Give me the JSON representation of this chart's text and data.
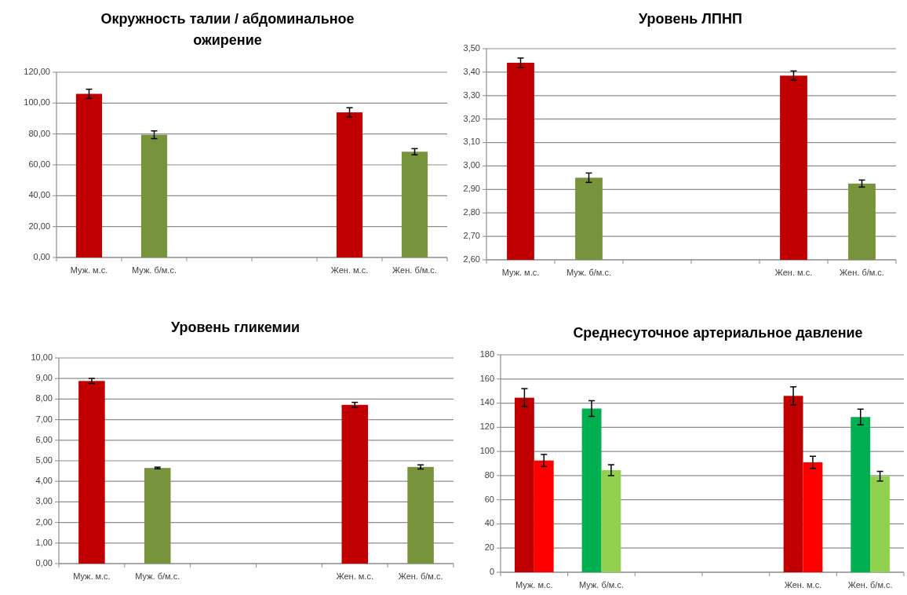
{
  "chart_data": [
    {
      "type": "bar",
      "title": "Окружность  талии / абдоминальное ожирение",
      "categories": [
        "Муж. м.с.",
        "Муж. б/м.с.",
        null,
        null,
        "Жен. м.с.",
        "Жен. б/м.с."
      ],
      "series": [
        {
          "values": [
            106,
            79.5,
            null,
            null,
            94,
            68.5
          ],
          "colors": [
            "#c00000",
            "#77933c",
            null,
            null,
            "#c00000",
            "#77933c"
          ],
          "errors": [
            3,
            2.5,
            null,
            null,
            3,
            2
          ]
        }
      ],
      "ylim": [
        0,
        120
      ],
      "yticks": [
        {
          "value": 0,
          "label": "0,00"
        },
        {
          "value": 20,
          "label": "20,00"
        },
        {
          "value": 40,
          "label": "40,00"
        },
        {
          "value": 60,
          "label": "60,00"
        },
        {
          "value": 80,
          "label": "80,00"
        },
        {
          "value": 100,
          "label": "100,00"
        },
        {
          "value": 120,
          "label": "120,00"
        }
      ],
      "grid": "y"
    },
    {
      "type": "bar",
      "title": "Уровень ЛПНП",
      "categories": [
        "Муж. м.с.",
        "Муж. б/м.с.",
        null,
        null,
        "Жен. м.с.",
        "Жен. б/м.с."
      ],
      "series": [
        {
          "values": [
            3.44,
            2.95,
            null,
            null,
            3.385,
            2.925
          ],
          "colors": [
            "#c00000",
            "#77933c",
            null,
            null,
            "#c00000",
            "#77933c"
          ],
          "errors": [
            0.02,
            0.02,
            null,
            null,
            0.02,
            0.015
          ]
        }
      ],
      "ylim": [
        2.6,
        3.5
      ],
      "yticks": [
        {
          "value": 2.6,
          "label": "2,60"
        },
        {
          "value": 2.7,
          "label": "2,70"
        },
        {
          "value": 2.8,
          "label": "2,80"
        },
        {
          "value": 2.9,
          "label": "2,90"
        },
        {
          "value": 3.0,
          "label": "3,00"
        },
        {
          "value": 3.1,
          "label": "3,10"
        },
        {
          "value": 3.2,
          "label": "3,20"
        },
        {
          "value": 3.3,
          "label": "3,30"
        },
        {
          "value": 3.4,
          "label": "3,40"
        },
        {
          "value": 3.5,
          "label": "3,50"
        }
      ],
      "grid": "y"
    },
    {
      "type": "bar",
      "title": "Уровень гликемии",
      "categories": [
        "Муж. м.с.",
        "Муж. б/м.с.",
        null,
        null,
        "Жен. м.с.",
        "Жен. б/м.с."
      ],
      "series": [
        {
          "values": [
            8.88,
            4.65,
            null,
            null,
            7.72,
            4.7
          ],
          "colors": [
            "#c00000",
            "#77933c",
            null,
            null,
            "#c00000",
            "#77933c"
          ],
          "errors": [
            0.12,
            0.04,
            null,
            null,
            0.12,
            0.1
          ]
        }
      ],
      "ylim": [
        0,
        10
      ],
      "yticks": [
        {
          "value": 0,
          "label": "0,00"
        },
        {
          "value": 1,
          "label": "1,00"
        },
        {
          "value": 2,
          "label": "2,00"
        },
        {
          "value": 3,
          "label": "3,00"
        },
        {
          "value": 4,
          "label": "4,00"
        },
        {
          "value": 5,
          "label": "5,00"
        },
        {
          "value": 6,
          "label": "6,00"
        },
        {
          "value": 7,
          "label": "7,00"
        },
        {
          "value": 8,
          "label": "8,00"
        },
        {
          "value": 9,
          "label": "9,00"
        },
        {
          "value": 10,
          "label": "10,00"
        }
      ],
      "grid": "y"
    },
    {
      "type": "bar",
      "title": "Среднесуточное артериальное давление",
      "categories": [
        "Муж. м.с.",
        "Муж. б/м.с.",
        null,
        null,
        "Жен. м.с.",
        "Жен. б/м.с."
      ],
      "series": [
        {
          "values": [
            144.5,
            135.5,
            null,
            null,
            146,
            128.5
          ],
          "colors": [
            "#c00000",
            "#00b050",
            null,
            null,
            "#c00000",
            "#00b050"
          ],
          "errors": [
            7.5,
            6.5,
            null,
            null,
            7.5,
            6.5
          ]
        },
        {
          "values": [
            92.5,
            84.5,
            null,
            null,
            91,
            79.5
          ],
          "colors": [
            "#ff0000",
            "#92d050",
            null,
            null,
            "#ff0000",
            "#92d050"
          ],
          "errors": [
            5,
            4.5,
            null,
            null,
            5,
            4
          ]
        }
      ],
      "ylim": [
        0,
        180
      ],
      "yticks": [
        0,
        20,
        40,
        60,
        80,
        100,
        120,
        140,
        160,
        180
      ],
      "grid": "y"
    }
  ]
}
